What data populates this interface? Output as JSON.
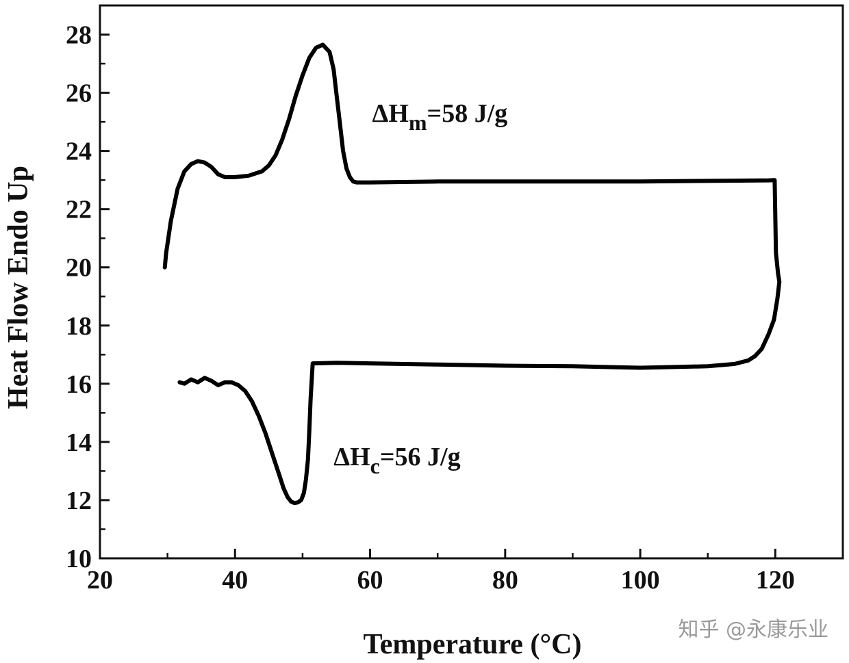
{
  "chart_data": {
    "type": "line",
    "title": "",
    "xlabel": "Temperature (°C)",
    "ylabel": "Heat Flow Endo Up",
    "xlim": [
      20,
      130
    ],
    "ylim": [
      10,
      29
    ],
    "xticks": [
      20,
      40,
      60,
      80,
      100,
      120
    ],
    "yticks": [
      10,
      12,
      14,
      16,
      18,
      20,
      22,
      24,
      26,
      28
    ],
    "grid": false,
    "legend": "none",
    "line_color": "#000000",
    "series": [
      {
        "x": [
          29.6,
          29.8,
          30.5,
          31.5,
          32.5,
          33.5,
          34.5,
          35.5,
          36.5,
          37.5,
          38.5,
          40,
          42,
          44,
          45,
          46,
          47,
          48,
          49,
          50,
          51,
          52,
          53,
          54,
          54.6,
          55,
          55.5,
          56,
          56.5,
          57,
          57.5,
          58,
          60,
          70,
          80,
          90,
          100,
          110,
          119,
          119.8
        ],
        "y": [
          20.0,
          20.5,
          21.6,
          22.7,
          23.3,
          23.55,
          23.65,
          23.6,
          23.45,
          23.2,
          23.1,
          23.1,
          23.15,
          23.3,
          23.5,
          23.85,
          24.4,
          25.1,
          25.9,
          26.6,
          27.2,
          27.55,
          27.65,
          27.4,
          26.8,
          26.0,
          25.0,
          24.0,
          23.4,
          23.1,
          22.95,
          22.92,
          22.92,
          22.95,
          22.95,
          22.95,
          22.95,
          22.97,
          22.99,
          23.0
        ]
      },
      {
        "x": [
          119.9,
          120.1,
          120.4,
          120.6,
          120.3,
          119.8,
          119,
          118,
          117,
          116,
          114,
          110,
          100,
          90,
          80,
          70,
          60,
          55,
          51.5,
          51.2,
          51.0,
          50.8,
          50.5,
          50.2,
          49.8,
          49.3,
          48.8,
          48.3,
          47.8,
          47.2,
          46.5,
          45.5,
          44.5,
          43.5,
          42.5,
          41.5,
          40.5,
          39.5,
          38.5,
          37.5,
          36.5,
          35.5,
          34.5,
          33.5,
          32.5,
          31.8
        ],
        "y": [
          23.0,
          20.5,
          19.8,
          19.5,
          18.9,
          18.2,
          17.7,
          17.2,
          16.95,
          16.8,
          16.68,
          16.6,
          16.55,
          16.6,
          16.62,
          16.66,
          16.7,
          16.72,
          16.7,
          15.5,
          14.4,
          13.4,
          12.7,
          12.25,
          12.0,
          11.92,
          11.9,
          11.95,
          12.1,
          12.4,
          12.9,
          13.6,
          14.3,
          14.9,
          15.4,
          15.75,
          15.95,
          16.05,
          16.05,
          15.95,
          16.1,
          16.2,
          16.05,
          16.15,
          16.0,
          16.05
        ]
      }
    ],
    "annotations": [
      {
        "id": "melt",
        "base": "ΔH",
        "subscript": "m",
        "suffix": "=58 J/g",
        "x": 60.3,
        "y": 25.0
      },
      {
        "id": "cryst",
        "base": "ΔH",
        "subscript": "c",
        "suffix": "=56 J/g",
        "x": 54.6,
        "y": 13.2
      }
    ]
  },
  "watermark": "知乎 @永康乐业"
}
